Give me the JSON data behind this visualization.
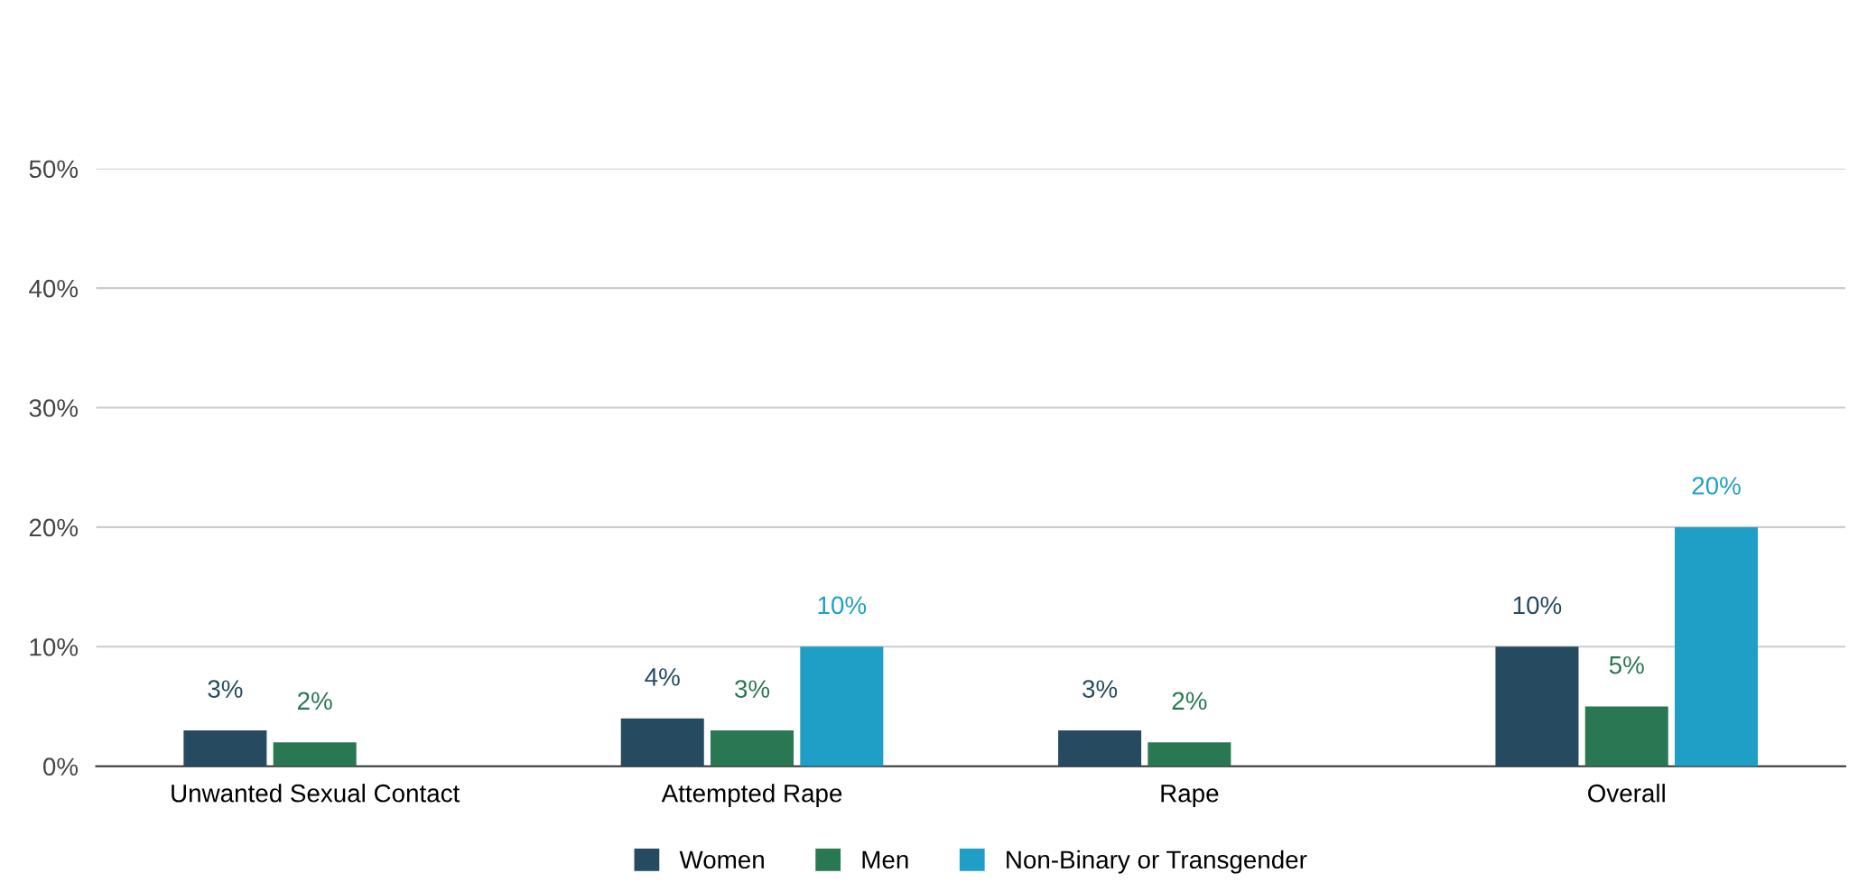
{
  "chart_data": {
    "type": "bar",
    "categories": [
      "Unwanted Sexual Contact",
      "Attempted Rape",
      "Rape",
      "Overall"
    ],
    "series": [
      {
        "name": "Women",
        "color": "#264a5f",
        "values": [
          3,
          4,
          3,
          10
        ],
        "value_labels": [
          "3%",
          "4%",
          "3%",
          "10%"
        ]
      },
      {
        "name": "Men",
        "color": "#2a7753",
        "values": [
          2,
          3,
          2,
          5
        ],
        "value_labels": [
          "2%",
          "3%",
          "2%",
          "5%"
        ]
      },
      {
        "name": "Non-Binary or Transgender",
        "color": "#1f9fc6",
        "values": [
          null,
          10,
          null,
          20
        ],
        "value_labels": [
          null,
          "10%",
          null,
          "20%"
        ]
      }
    ],
    "ylim": [
      0,
      50
    ],
    "yticks": [
      {
        "value": 0,
        "label": "0%"
      },
      {
        "value": 10,
        "label": "10%"
      },
      {
        "value": 20,
        "label": "20%"
      },
      {
        "value": 30,
        "label": "30%"
      },
      {
        "value": 40,
        "label": "40%"
      },
      {
        "value": 50,
        "label": "50%"
      }
    ],
    "grid": "y",
    "legend": "bottom"
  }
}
